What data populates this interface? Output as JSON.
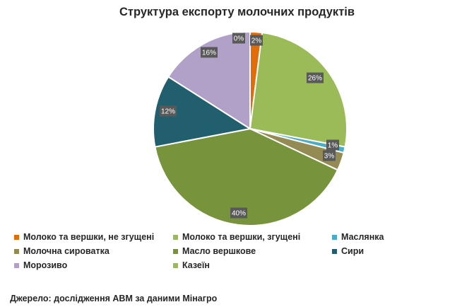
{
  "chart_data": {
    "type": "pie",
    "title": "Структура експорту молочних продуктів",
    "slices": [
      {
        "name": "Казеїн",
        "value": 0,
        "label": "0%",
        "color": "#9bbb59"
      },
      {
        "name": "Молоко та вершки, не згущені",
        "value": 2,
        "label": "2%",
        "color": "#e36c0a"
      },
      {
        "name": "Молоко та вершки, згущені",
        "value": 26,
        "label": "26%",
        "color": "#9bbb59"
      },
      {
        "name": "Маслянка",
        "value": 1,
        "label": "1%",
        "color": "#4bacc6"
      },
      {
        "name": "Молочна сироватка",
        "value": 3,
        "label": "3%",
        "color": "#948a54"
      },
      {
        "name": "Масло вершкове",
        "value": 40,
        "label": "40%",
        "color": "#77933c"
      },
      {
        "name": "Сири",
        "value": 12,
        "label": "12%",
        "color": "#215f6e"
      },
      {
        "name": "Морозиво",
        "value": 16,
        "label": "16%",
        "color": "#b1a0c7"
      }
    ],
    "legend_position": "bottom",
    "legend_order": [
      "Молоко та вершки, не згущені",
      "Молоко та вершки, згущені",
      "Маслянка",
      "Молочна сироватка",
      "Масло вершкове",
      "Сири",
      "Морозиво",
      "Казеїн"
    ]
  },
  "source": "Джерело: дослідження ABM за даними Мінагро"
}
